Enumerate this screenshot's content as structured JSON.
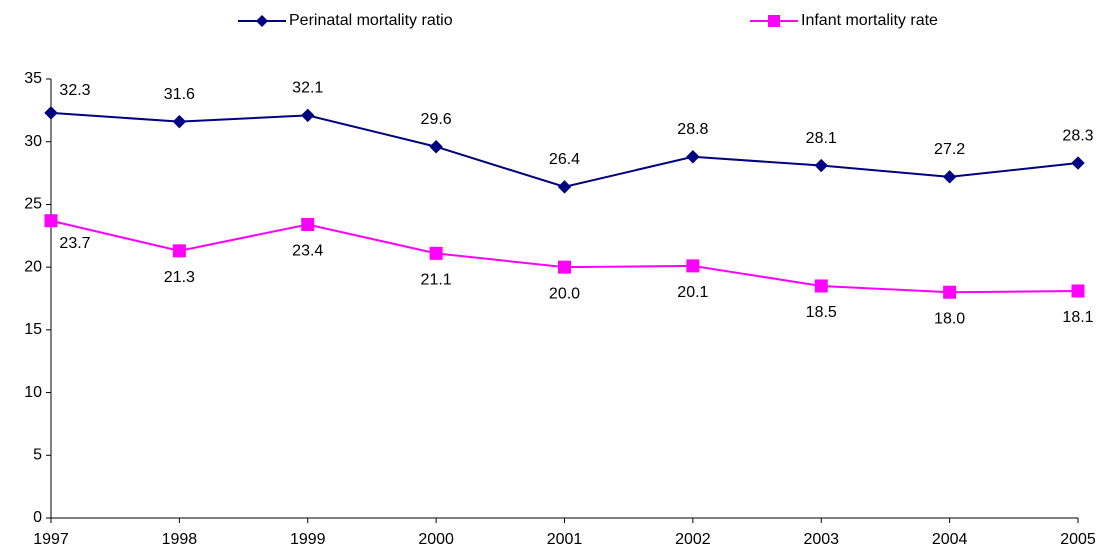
{
  "chart_data": {
    "type": "line",
    "categories": [
      "1997",
      "1998",
      "1999",
      "2000",
      "2001",
      "2002",
      "2003",
      "2004",
      "2005"
    ],
    "series": [
      {
        "name": "Perinatal mortality ratio",
        "color": "#000080",
        "marker": "diamond",
        "values": [
          32.3,
          31.6,
          32.1,
          29.6,
          26.4,
          28.8,
          28.1,
          27.2,
          28.3
        ],
        "value_labels": [
          "32.3",
          "31.6",
          "32.1",
          "29.6",
          "26.4",
          "28.8",
          "28.1",
          "27.2",
          "28.3"
        ]
      },
      {
        "name": "Infant mortality rate",
        "color": "#ff00ff",
        "marker": "square",
        "values": [
          23.7,
          21.3,
          23.4,
          21.1,
          20.0,
          20.1,
          18.5,
          18.0,
          18.1
        ],
        "value_labels": [
          "23.7",
          "21.3",
          "23.4",
          "21.1",
          "20.0",
          "20.1",
          "18.5",
          "18.0",
          "18.1"
        ]
      }
    ],
    "ylim": [
      0,
      35
    ],
    "yticks": [
      0,
      5,
      10,
      15,
      20,
      25,
      30,
      35
    ],
    "grid": false,
    "legend": "top"
  }
}
